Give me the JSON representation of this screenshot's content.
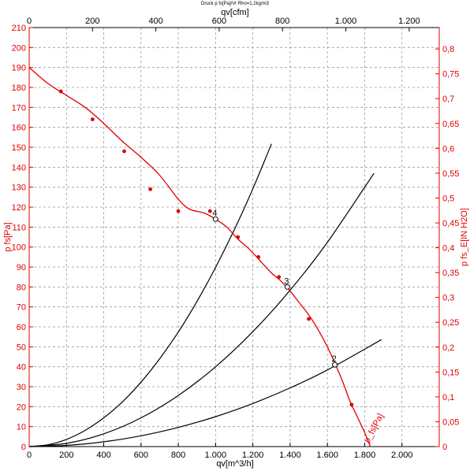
{
  "header": "Druck p fs[Pa]/Vr Rho=1,2kg/m3",
  "colors": {
    "fan_curve": "#e00000",
    "system_curves": "#000000",
    "grid": "#9a9a9a",
    "axis_red": "#e00000"
  },
  "chart_data": {
    "type": "line",
    "grid": true,
    "x_axis_bottom": {
      "label": "qv[m^3/h]",
      "range": [
        0,
        2200
      ],
      "ticks": [
        0,
        200,
        400,
        600,
        800,
        1000,
        1200,
        1400,
        1600,
        1800,
        2000
      ],
      "tick_labels": [
        "0",
        "200",
        "400",
        "600",
        "800",
        "1.000",
        "1.200",
        "1.400",
        "1.600",
        "1.800",
        "2.000"
      ]
    },
    "x_axis_top": {
      "label": "qv[cfm]",
      "range": [
        0,
        1295
      ],
      "ticks": [
        0,
        200,
        400,
        600,
        800,
        1000,
        1200
      ],
      "tick_labels": [
        "0",
        "200",
        "400",
        "600",
        "800",
        "1.000",
        "1.200"
      ]
    },
    "y_axis_left": {
      "label": "p fs[Pa]",
      "range": [
        0,
        210
      ],
      "ticks": [
        0,
        10,
        20,
        30,
        40,
        50,
        60,
        70,
        80,
        90,
        100,
        110,
        120,
        130,
        140,
        150,
        160,
        170,
        180,
        190,
        200,
        210
      ],
      "tick_labels": [
        "0",
        "10",
        "20",
        "30",
        "40",
        "50",
        "60",
        "70",
        "80",
        "90",
        "100",
        "110",
        "120",
        "130",
        "140",
        "150",
        "160",
        "170",
        "180",
        "190",
        "200",
        "210"
      ]
    },
    "y_axis_right": {
      "label": "p fs_E[IN H2O]",
      "range": [
        0,
        0.843
      ],
      "ticks": [
        0,
        0.05,
        0.1,
        0.15,
        0.2,
        0.25,
        0.3,
        0.35,
        0.4,
        0.45,
        0.5,
        0.55,
        0.6,
        0.65,
        0.7,
        0.75,
        0.8
      ],
      "tick_labels": [
        "0",
        "0,05",
        "0,1",
        "0,15",
        "0,2",
        "0,25",
        "0,3",
        "0,35",
        "0,4",
        "0,45",
        "0,5",
        "0,55",
        "0,6",
        "0,65",
        "0,7",
        "0,75",
        "0,8"
      ]
    },
    "fan_curve": {
      "name": "p_fs[Pa]",
      "x": [
        0,
        100,
        200,
        300,
        400,
        500,
        600,
        700,
        800,
        860,
        940,
        1000,
        1060,
        1120,
        1180,
        1240,
        1300,
        1350,
        1400,
        1450,
        1500,
        1560,
        1620,
        1680,
        1720,
        1760,
        1800,
        1830
      ],
      "y": [
        190,
        182,
        176,
        170,
        162,
        153,
        145,
        136,
        124,
        119,
        117,
        114,
        110,
        104,
        99,
        93,
        87,
        83,
        78,
        72,
        66,
        57,
        46,
        33,
        23,
        15,
        7,
        0
      ],
      "markers_x": [
        170,
        340,
        510,
        650,
        800,
        970,
        1120,
        1230,
        1340,
        1500,
        1730
      ],
      "markers_y": [
        178,
        164,
        148,
        129,
        118,
        118,
        105,
        95,
        85,
        64,
        21
      ]
    },
    "system_curves": [
      {
        "x": [
          0,
          100,
          200,
          300,
          400,
          500,
          600,
          700,
          800,
          900,
          1000,
          1100,
          1200,
          1300
        ],
        "y": [
          0,
          0.9,
          3.6,
          8.1,
          14.4,
          22.4,
          32.3,
          44.0,
          57.4,
          72.7,
          89.8,
          108.6,
          129.2,
          151.7
        ]
      },
      {
        "x": [
          0,
          200,
          400,
          600,
          800,
          1000,
          1200,
          1400,
          1600,
          1850
        ],
        "y": [
          0,
          1.6,
          6.4,
          14.4,
          25.6,
          40.0,
          57.6,
          78.4,
          102.4,
          137.0
        ]
      },
      {
        "x": [
          0,
          200,
          400,
          600,
          800,
          1000,
          1200,
          1400,
          1600,
          1890
        ],
        "y": [
          0,
          0.6,
          2.4,
          5.4,
          9.6,
          15.0,
          21.6,
          29.4,
          38.4,
          53.6
        ]
      }
    ],
    "operating_points": [
      {
        "label": "2",
        "x": 1640,
        "y": 41
      },
      {
        "label": "3",
        "x": 1385,
        "y": 80
      },
      {
        "label": "4",
        "x": 1000,
        "y": 114
      }
    ]
  }
}
